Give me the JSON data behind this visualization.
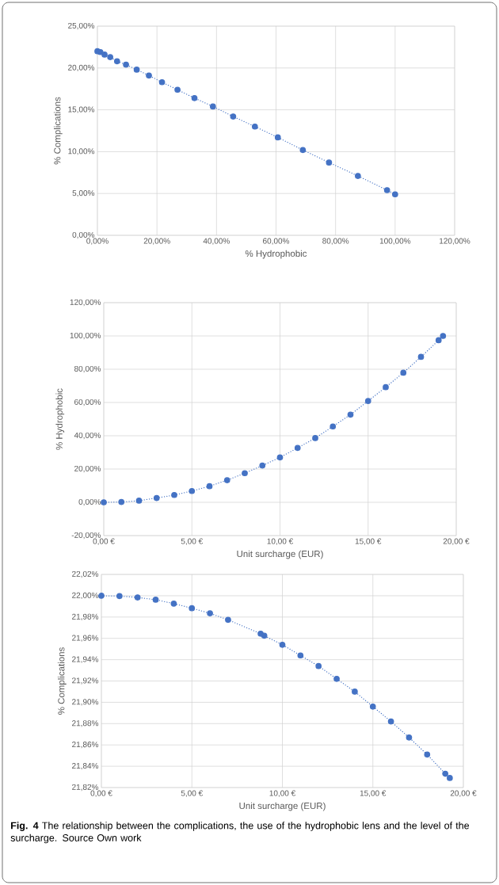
{
  "chart_data": [
    {
      "type": "line",
      "xlabel": "% Hydrophobic",
      "ylabel": "% Complications",
      "marker": "circle",
      "line_style": "dotted",
      "grid": true,
      "xlim": [
        0,
        120
      ],
      "ylim": [
        0,
        25
      ],
      "xticks": [
        {
          "value": 0,
          "label": "0,00%"
        },
        {
          "value": 20,
          "label": "20,00%"
        },
        {
          "value": 40,
          "label": "40,00%"
        },
        {
          "value": 60,
          "label": "60,00%"
        },
        {
          "value": 80,
          "label": "80,00%"
        },
        {
          "value": 100,
          "label": "100,00%"
        },
        {
          "value": 120,
          "label": "120,00%"
        }
      ],
      "yticks": [
        {
          "value": 0,
          "label": "0,00%"
        },
        {
          "value": 5,
          "label": "5,00%"
        },
        {
          "value": 10,
          "label": "10,00%"
        },
        {
          "value": 15,
          "label": "15,00%"
        },
        {
          "value": 20,
          "label": "20,00%"
        },
        {
          "value": 25,
          "label": "25,00%"
        }
      ],
      "x": [
        0,
        1,
        2.4,
        4.3,
        6.6,
        9.6,
        13.2,
        17.3,
        21.7,
        26.9,
        32.6,
        38.8,
        45.6,
        52.9,
        60.6,
        69,
        77.8,
        87.5,
        97.3,
        100
      ],
      "series": [
        {
          "color": "#4472c4",
          "values": [
            22.0,
            21.9,
            21.6,
            21.3,
            20.8,
            20.4,
            19.8,
            19.1,
            18.3,
            17.4,
            16.4,
            15.4,
            14.2,
            13.0,
            11.7,
            10.2,
            8.7,
            7.1,
            5.4,
            4.9
          ]
        }
      ]
    },
    {
      "type": "line",
      "xlabel": "Unit surcharge (EUR)",
      "ylabel": "% Hydrophobic",
      "marker": "circle",
      "line_style": "dotted",
      "grid": true,
      "xlim": [
        0,
        20
      ],
      "ylim": [
        -20,
        120
      ],
      "xticks": [
        {
          "value": 0,
          "label": "0,00 €"
        },
        {
          "value": 5,
          "label": "5,00 €"
        },
        {
          "value": 10,
          "label": "10,00 €"
        },
        {
          "value": 15,
          "label": "15,00 €"
        },
        {
          "value": 20,
          "label": "20,00 €"
        }
      ],
      "yticks": [
        {
          "value": -20,
          "label": "-20,00%"
        },
        {
          "value": 0,
          "label": "0,00%"
        },
        {
          "value": 20,
          "label": "20,00%"
        },
        {
          "value": 40,
          "label": "40,00%"
        },
        {
          "value": 60,
          "label": "60,00%"
        },
        {
          "value": 80,
          "label": "80,00%"
        },
        {
          "value": 100,
          "label": "100,00%"
        },
        {
          "value": 120,
          "label": "120,00%"
        }
      ],
      "x": [
        0,
        1,
        2,
        3,
        4,
        5,
        6,
        7,
        8,
        9,
        10,
        11,
        12,
        13,
        14,
        15,
        16,
        17,
        18,
        19,
        19.25
      ],
      "series": [
        {
          "color": "#4472c4",
          "values": [
            0,
            0.2,
            1.0,
            2.6,
            4.4,
            6.8,
            9.7,
            13.3,
            17.5,
            22.1,
            27.0,
            32.7,
            38.6,
            45.6,
            52.7,
            60.9,
            69.2,
            77.9,
            87.4,
            97.4,
            100
          ]
        }
      ]
    },
    {
      "type": "line",
      "xlabel": "Unit surcharge (EUR)",
      "ylabel": "% Complications",
      "marker": "circle",
      "line_style": "dotted",
      "grid": true,
      "xlim": [
        0,
        20
      ],
      "ylim": [
        21.82,
        22.02
      ],
      "xticks": [
        {
          "value": 0,
          "label": "0,00 €"
        },
        {
          "value": 5,
          "label": "5,00 €"
        },
        {
          "value": 10,
          "label": "10,00 €"
        },
        {
          "value": 15,
          "label": "15,00 €"
        },
        {
          "value": 20,
          "label": "20,00 €"
        }
      ],
      "yticks": [
        {
          "value": 21.82,
          "label": "21,82%"
        },
        {
          "value": 21.84,
          "label": "21,84%"
        },
        {
          "value": 21.86,
          "label": "21,86%"
        },
        {
          "value": 21.88,
          "label": "21,88%"
        },
        {
          "value": 21.9,
          "label": "21,90%"
        },
        {
          "value": 21.92,
          "label": "21,92%"
        },
        {
          "value": 21.94,
          "label": "21,94%"
        },
        {
          "value": 21.96,
          "label": "21,96%"
        },
        {
          "value": 21.98,
          "label": "21,98%"
        },
        {
          "value": 22.0,
          "label": "22,00%"
        },
        {
          "value": 22.02,
          "label": "22,02%"
        }
      ],
      "x": [
        0,
        1,
        2,
        3,
        4,
        5,
        6,
        7,
        8.8,
        9,
        10,
        11,
        12,
        13,
        14,
        15,
        16,
        17,
        18,
        19,
        19.25
      ],
      "series": [
        {
          "color": "#4472c4",
          "values": [
            22.0,
            21.9997,
            21.9984,
            21.9963,
            21.9926,
            21.9883,
            21.9835,
            21.9774,
            21.9644,
            21.9625,
            21.954,
            21.944,
            21.934,
            21.922,
            21.91,
            21.896,
            21.882,
            21.867,
            21.851,
            21.833,
            21.829
          ]
        }
      ],
      "annotations": [
        "**Fig. 4** The relationship between the complications, the use of the hydrophobic lens and the level of the surcharge. Source Own work"
      ]
    }
  ]
}
